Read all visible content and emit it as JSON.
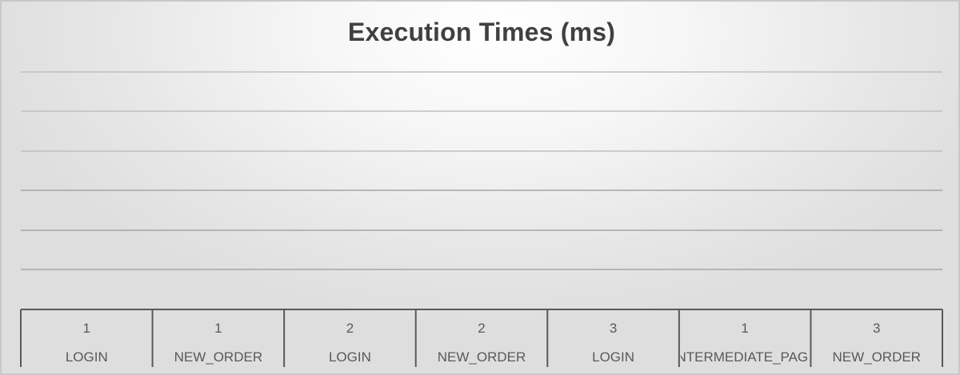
{
  "chart_data": {
    "type": "bar",
    "title": "Execution Times (ms)",
    "xlabel": "",
    "ylabel": "",
    "grid": true,
    "categories": [
      {
        "level1": "1",
        "level2": "LOGIN"
      },
      {
        "level1": "1",
        "level2": "NEW_ORDER"
      },
      {
        "level1": "2",
        "level2": "LOGIN"
      },
      {
        "level1": "2",
        "level2": "NEW_ORDER"
      },
      {
        "level1": "3",
        "level2": "LOGIN"
      },
      {
        "level1": "1",
        "level2": "INTERMEDIATE_PAGE"
      },
      {
        "level1": "3",
        "level2": "NEW_ORDER"
      }
    ],
    "series": []
  },
  "colors": {
    "title": "#404040",
    "axis": "#595959",
    "grid": "#bfbfbf",
    "tick_text": "#595959"
  }
}
